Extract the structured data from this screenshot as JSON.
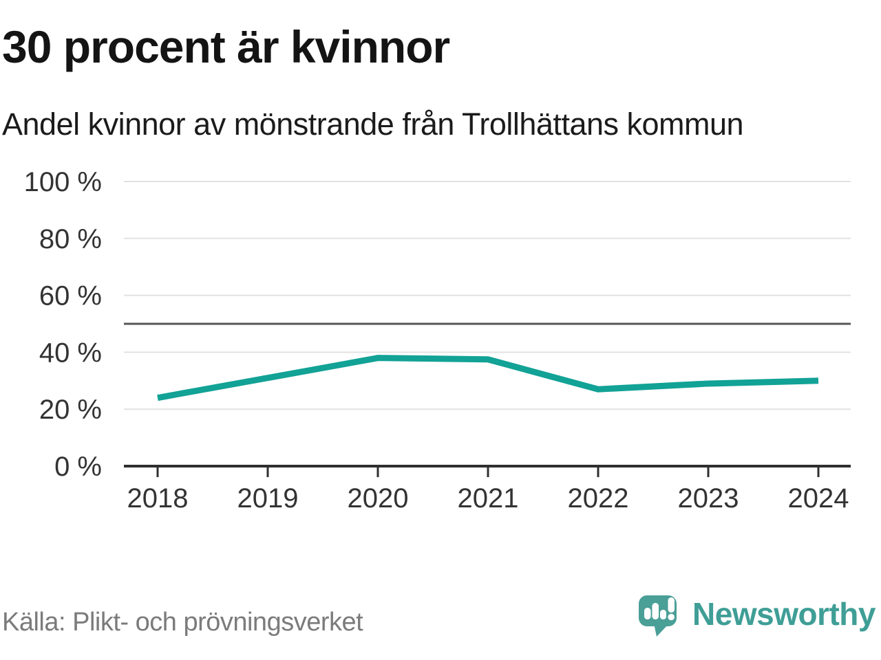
{
  "header": {
    "title": "30 procent är kvinnor",
    "subtitle": "Andel kvinnor av mönstrande från Trollhättans kommun"
  },
  "footer": {
    "source": "Källa: Plikt- och prövningsverket",
    "brand": "Newsworthy"
  },
  "colors": {
    "line": "#12a296",
    "grid": "#e2e2e2",
    "axis": "#2f2f2f",
    "reference": "#565656",
    "tick_label": "#333333",
    "brand_teal": "#4a9f97"
  },
  "chart_data": {
    "type": "line",
    "title": "30 procent är kvinnor",
    "subtitle": "Andel kvinnor av mönstrande från Trollhättans kommun",
    "categories": [
      "2018",
      "2019",
      "2020",
      "2021",
      "2022",
      "2023",
      "2024"
    ],
    "series": [
      {
        "name": "Andel kvinnor av mönstrande",
        "values": [
          24,
          31,
          38,
          37.5,
          27,
          29,
          30
        ]
      }
    ],
    "unit": "%",
    "ylim": [
      0,
      100
    ],
    "yticks": [
      0,
      20,
      40,
      60,
      80,
      100
    ],
    "ytick_labels": [
      "0 %",
      "20 %",
      "40 %",
      "60 %",
      "80 %",
      "100 %"
    ],
    "reference_line": {
      "value": 50
    },
    "grid": true,
    "legend": "none",
    "line_color": "#12a296"
  }
}
